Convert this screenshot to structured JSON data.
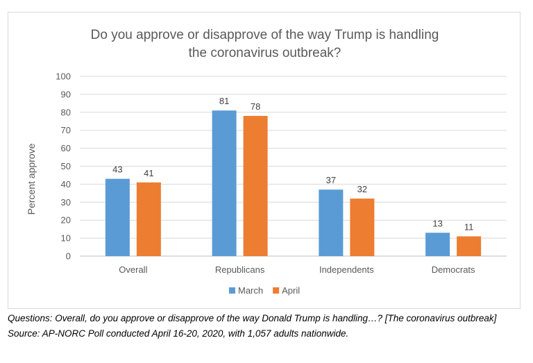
{
  "chart_data": {
    "type": "bar",
    "title_line1": "Do you approve or disapprove of the way Trump is handling",
    "title_line2": "the coronavirus outbreak?",
    "xlabel": "",
    "ylabel": "Percent approve",
    "ylim": [
      0,
      100
    ],
    "yticks": [
      "0",
      "10",
      "20",
      "30",
      "40",
      "50",
      "60",
      "70",
      "80",
      "90",
      "100"
    ],
    "categories": [
      "Overall",
      "Republicans",
      "Independents",
      "Democrats"
    ],
    "series": [
      {
        "name": "March",
        "values": [
          43,
          81,
          37,
          13
        ],
        "color": "#5b9bd5"
      },
      {
        "name": "April",
        "values": [
          41,
          78,
          32,
          11
        ],
        "color": "#ed7d31"
      }
    ],
    "grid": true,
    "legend_position": "bottom"
  },
  "notes": {
    "questions": "Questions: Overall, do you approve or disapprove of the way Donald Trump is handling…? [The coronavirus outbreak]",
    "source": "Source: AP-NORC Poll conducted April 16-20, 2020, with 1,057 adults nationwide."
  }
}
